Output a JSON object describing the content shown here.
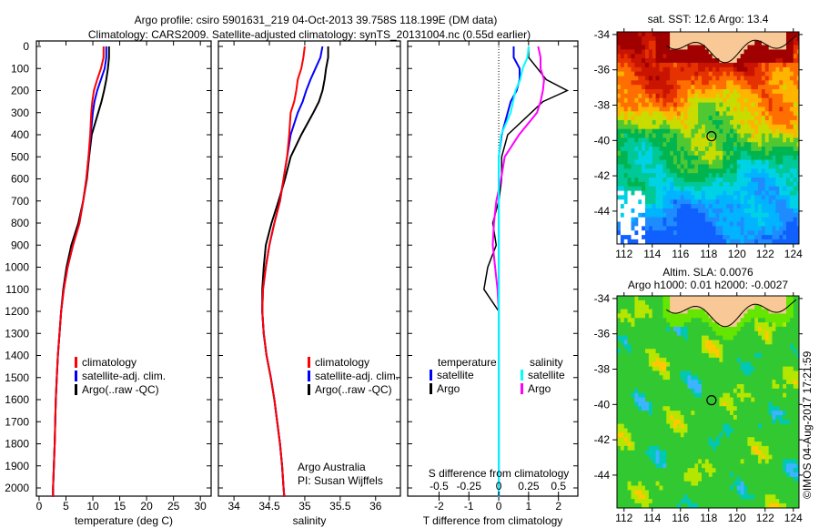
{
  "title_line1": "Argo profile: csiro 5901631_219 04-Oct-2013 39.758S 118.199E (DM data)",
  "title_line2": "Climatology: CARS2009. Satellite-adjusted climatology: synTS_20131004.nc (0.55d earlier)",
  "copyright": "©IMOS 04-Aug-2017 17:21:59",
  "chart_data": [
    {
      "type": "line",
      "name": "temperature",
      "xlabel": "temperature (deg C)",
      "xticks": [
        "0",
        "5",
        "10",
        "15",
        "20",
        "25",
        "30"
      ],
      "xtickvals": [
        0,
        5,
        10,
        15,
        20,
        25,
        30
      ],
      "xlim": [
        -0.5,
        32
      ],
      "ylim": [
        0,
        2070
      ],
      "yticks": [
        "0",
        "100",
        "200",
        "300",
        "400",
        "500",
        "600",
        "700",
        "800",
        "900",
        "1000",
        "1100",
        "1200",
        "1300",
        "1400",
        "1500",
        "1600",
        "1700",
        "1800",
        "1900",
        "2000"
      ],
      "depth": [
        0,
        50,
        100,
        150,
        200,
        250,
        300,
        400,
        500,
        600,
        700,
        800,
        900,
        1000,
        1100,
        1200,
        1300,
        1400,
        1500,
        1600,
        1700,
        1800,
        1900,
        2000,
        2040
      ],
      "series": [
        {
          "name": "climatology",
          "color": "#ff0000",
          "values": [
            12.0,
            12.0,
            11.5,
            10.8,
            10.2,
            9.9,
            9.7,
            9.5,
            9.2,
            8.8,
            8.2,
            7.5,
            6.3,
            5.3,
            4.6,
            4.1,
            3.8,
            3.5,
            3.3,
            3.1,
            3.0,
            2.9,
            2.75,
            2.6,
            2.6
          ]
        },
        {
          "name": "satellite-adj. clim.",
          "color": "#0000ff",
          "values": [
            12.5,
            12.5,
            12.2,
            11.5,
            10.8,
            10.3,
            10.0,
            9.6,
            9.2,
            8.8,
            8.2,
            7.5,
            6.3,
            5.3,
            4.6,
            4.1,
            3.8,
            3.5,
            3.3,
            3.1,
            3.0,
            2.9,
            2.75,
            2.6,
            2.6
          ]
        },
        {
          "name": "Argo(..raw -QC)",
          "color": "#000000",
          "values": [
            13.0,
            13.0,
            12.8,
            12.5,
            12.1,
            11.6,
            11.0,
            9.8,
            9.3,
            8.9,
            8.2,
            7.3,
            6.0,
            5.1,
            4.5,
            4.1,
            3.8,
            3.5,
            3.3,
            3.1,
            3.0,
            2.9,
            2.75,
            2.6,
            2.6
          ]
        }
      ]
    },
    {
      "type": "line",
      "name": "salinity",
      "xlabel": "salinity",
      "xticks": [
        "34",
        "34.5",
        "35",
        "35.5",
        "36"
      ],
      "xtickvals": [
        34,
        34.5,
        35,
        35.5,
        36
      ],
      "xlim": [
        33.78,
        36.35
      ],
      "notes": [
        "Argo Australia",
        "PI: Susan Wijffels"
      ],
      "series": [
        {
          "name": "climatology",
          "color": "#ff0000",
          "values": [
            35.0,
            34.98,
            34.95,
            34.9,
            34.88,
            34.85,
            34.8,
            34.78,
            34.75,
            34.7,
            34.65,
            34.57,
            34.5,
            34.45,
            34.41,
            34.4,
            34.42,
            34.46,
            34.52,
            34.57,
            34.61,
            34.65,
            34.68,
            34.7,
            34.71
          ]
        },
        {
          "name": "satellite-adj. clim.",
          "color": "#0000ff",
          "values": [
            35.25,
            35.22,
            35.15,
            35.08,
            35.02,
            34.97,
            34.9,
            34.8,
            34.75,
            34.7,
            34.65,
            34.57,
            34.5,
            34.45,
            34.41,
            34.4,
            34.42,
            34.46,
            34.52,
            34.57,
            34.61,
            34.65,
            34.68,
            34.7,
            34.71
          ]
        },
        {
          "name": "Argo(..raw -QC)",
          "color": "#000000",
          "values": [
            35.33,
            35.33,
            35.3,
            35.28,
            35.25,
            35.2,
            35.12,
            34.95,
            34.8,
            34.72,
            34.63,
            34.53,
            34.45,
            34.42,
            34.4,
            34.4,
            34.42,
            34.46,
            34.52,
            34.57,
            34.61,
            34.65,
            34.68,
            34.7,
            34.71
          ]
        }
      ]
    },
    {
      "type": "line",
      "name": "differences",
      "xlabel": "T difference from climatology",
      "x2label": "S difference from climatology",
      "xticks": [
        "-2",
        "-1",
        "0",
        "1",
        "2"
      ],
      "xtickvals": [
        -2,
        -1,
        0,
        1,
        2
      ],
      "x2ticks": [
        "-0.5",
        "-0.25",
        "0",
        "0.25",
        "0.5"
      ],
      "x2tickvals": [
        -0.5,
        -0.25,
        0,
        0.25,
        0.5
      ],
      "xlim": [
        -3.05,
        2.65
      ],
      "legend": {
        "temperature": "temperature",
        "salinity": "salinity",
        "satellite": "satellite",
        "argo": "Argo"
      },
      "colors": {
        "t_sat": "#0000ff",
        "t_argo": "#000000",
        "s_sat": "#00ffff",
        "s_argo": "#ff00ff"
      }
    },
    {
      "type": "heatmap",
      "name": "sst-map",
      "title": "sat. SST: 12.6 Argo: 13.4",
      "lonticks": [
        "112",
        "114",
        "116",
        "118",
        "120",
        "122",
        "124"
      ],
      "latticks": [
        "-34",
        "-36",
        "-38",
        "-40",
        "-42",
        "-44"
      ],
      "argo_lon": 118.199,
      "argo_lat": -39.758
    },
    {
      "type": "heatmap",
      "name": "sla-map",
      "title": "Altim. SLA: 0.0076",
      "subtitle": "Argo h1000: 0.01 h2000: -0.0027",
      "lonticks": [
        "112",
        "114",
        "116",
        "118",
        "120",
        "122",
        "124"
      ],
      "latticks": [
        "-34",
        "-36",
        "-38",
        "-40",
        "-42",
        "-44"
      ],
      "argo_lon": 118.199,
      "argo_lat": -39.758
    }
  ]
}
